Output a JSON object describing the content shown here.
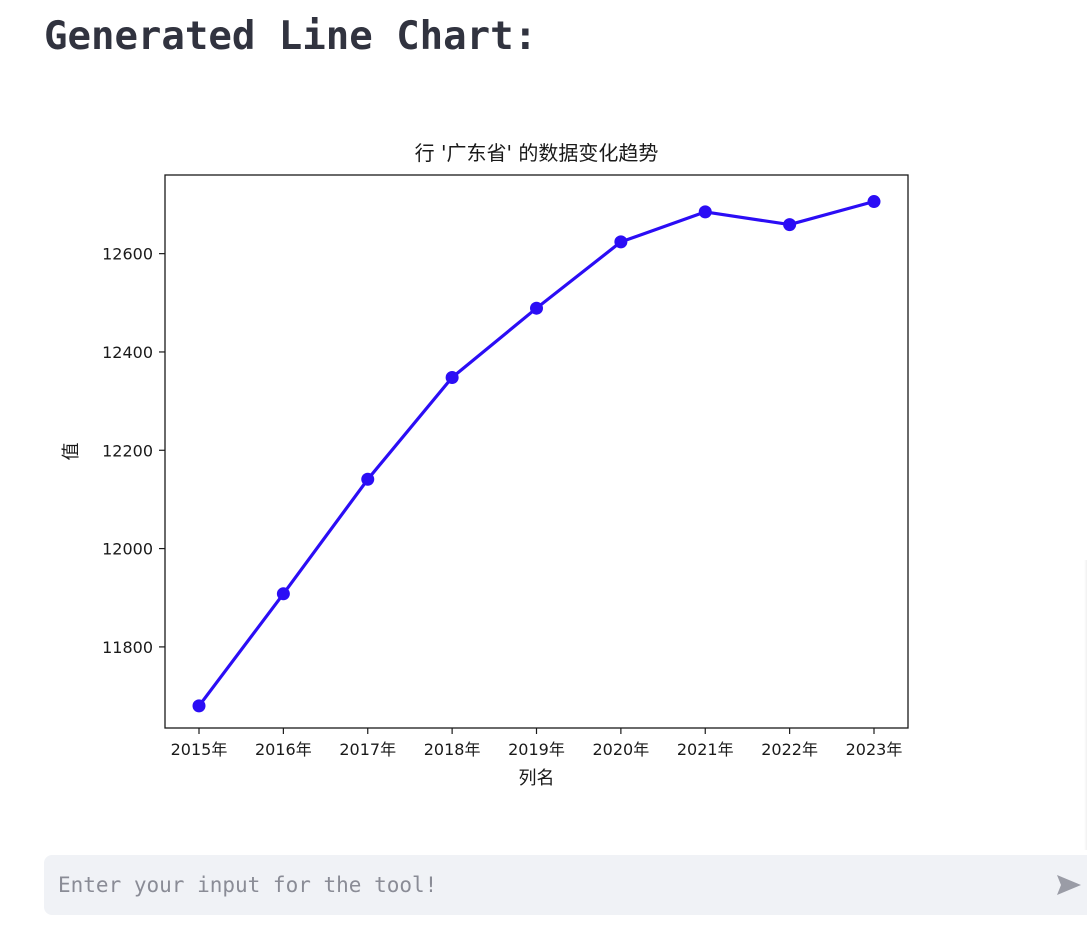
{
  "page": {
    "heading": "Generated Line Chart:"
  },
  "input": {
    "placeholder": "Enter your input for the tool!",
    "value": ""
  },
  "send_icon": "send-arrow-icon",
  "colors": {
    "line": "#2b0df5",
    "marker": "#2b0df5",
    "heading": "#31333f",
    "input_bg": "#f0f2f6",
    "send_icon": "#9a9ca6"
  },
  "chart_data": {
    "type": "line",
    "title": "行 '广东省' 的数据变化趋势",
    "xlabel": "列名",
    "ylabel": "值",
    "categories": [
      "2015年",
      "2016年",
      "2017年",
      "2018年",
      "2019年",
      "2020年",
      "2021年",
      "2022年",
      "2023年"
    ],
    "series": [
      {
        "values": [
          11680,
          11908,
          12141,
          12348,
          12489,
          12624,
          12685,
          12659,
          12706
        ]
      }
    ],
    "ylim": [
      11635,
      12760
    ],
    "yticks": [
      11800,
      12000,
      12200,
      12400,
      12600
    ],
    "grid": false,
    "legend": false,
    "marker": "circle"
  }
}
